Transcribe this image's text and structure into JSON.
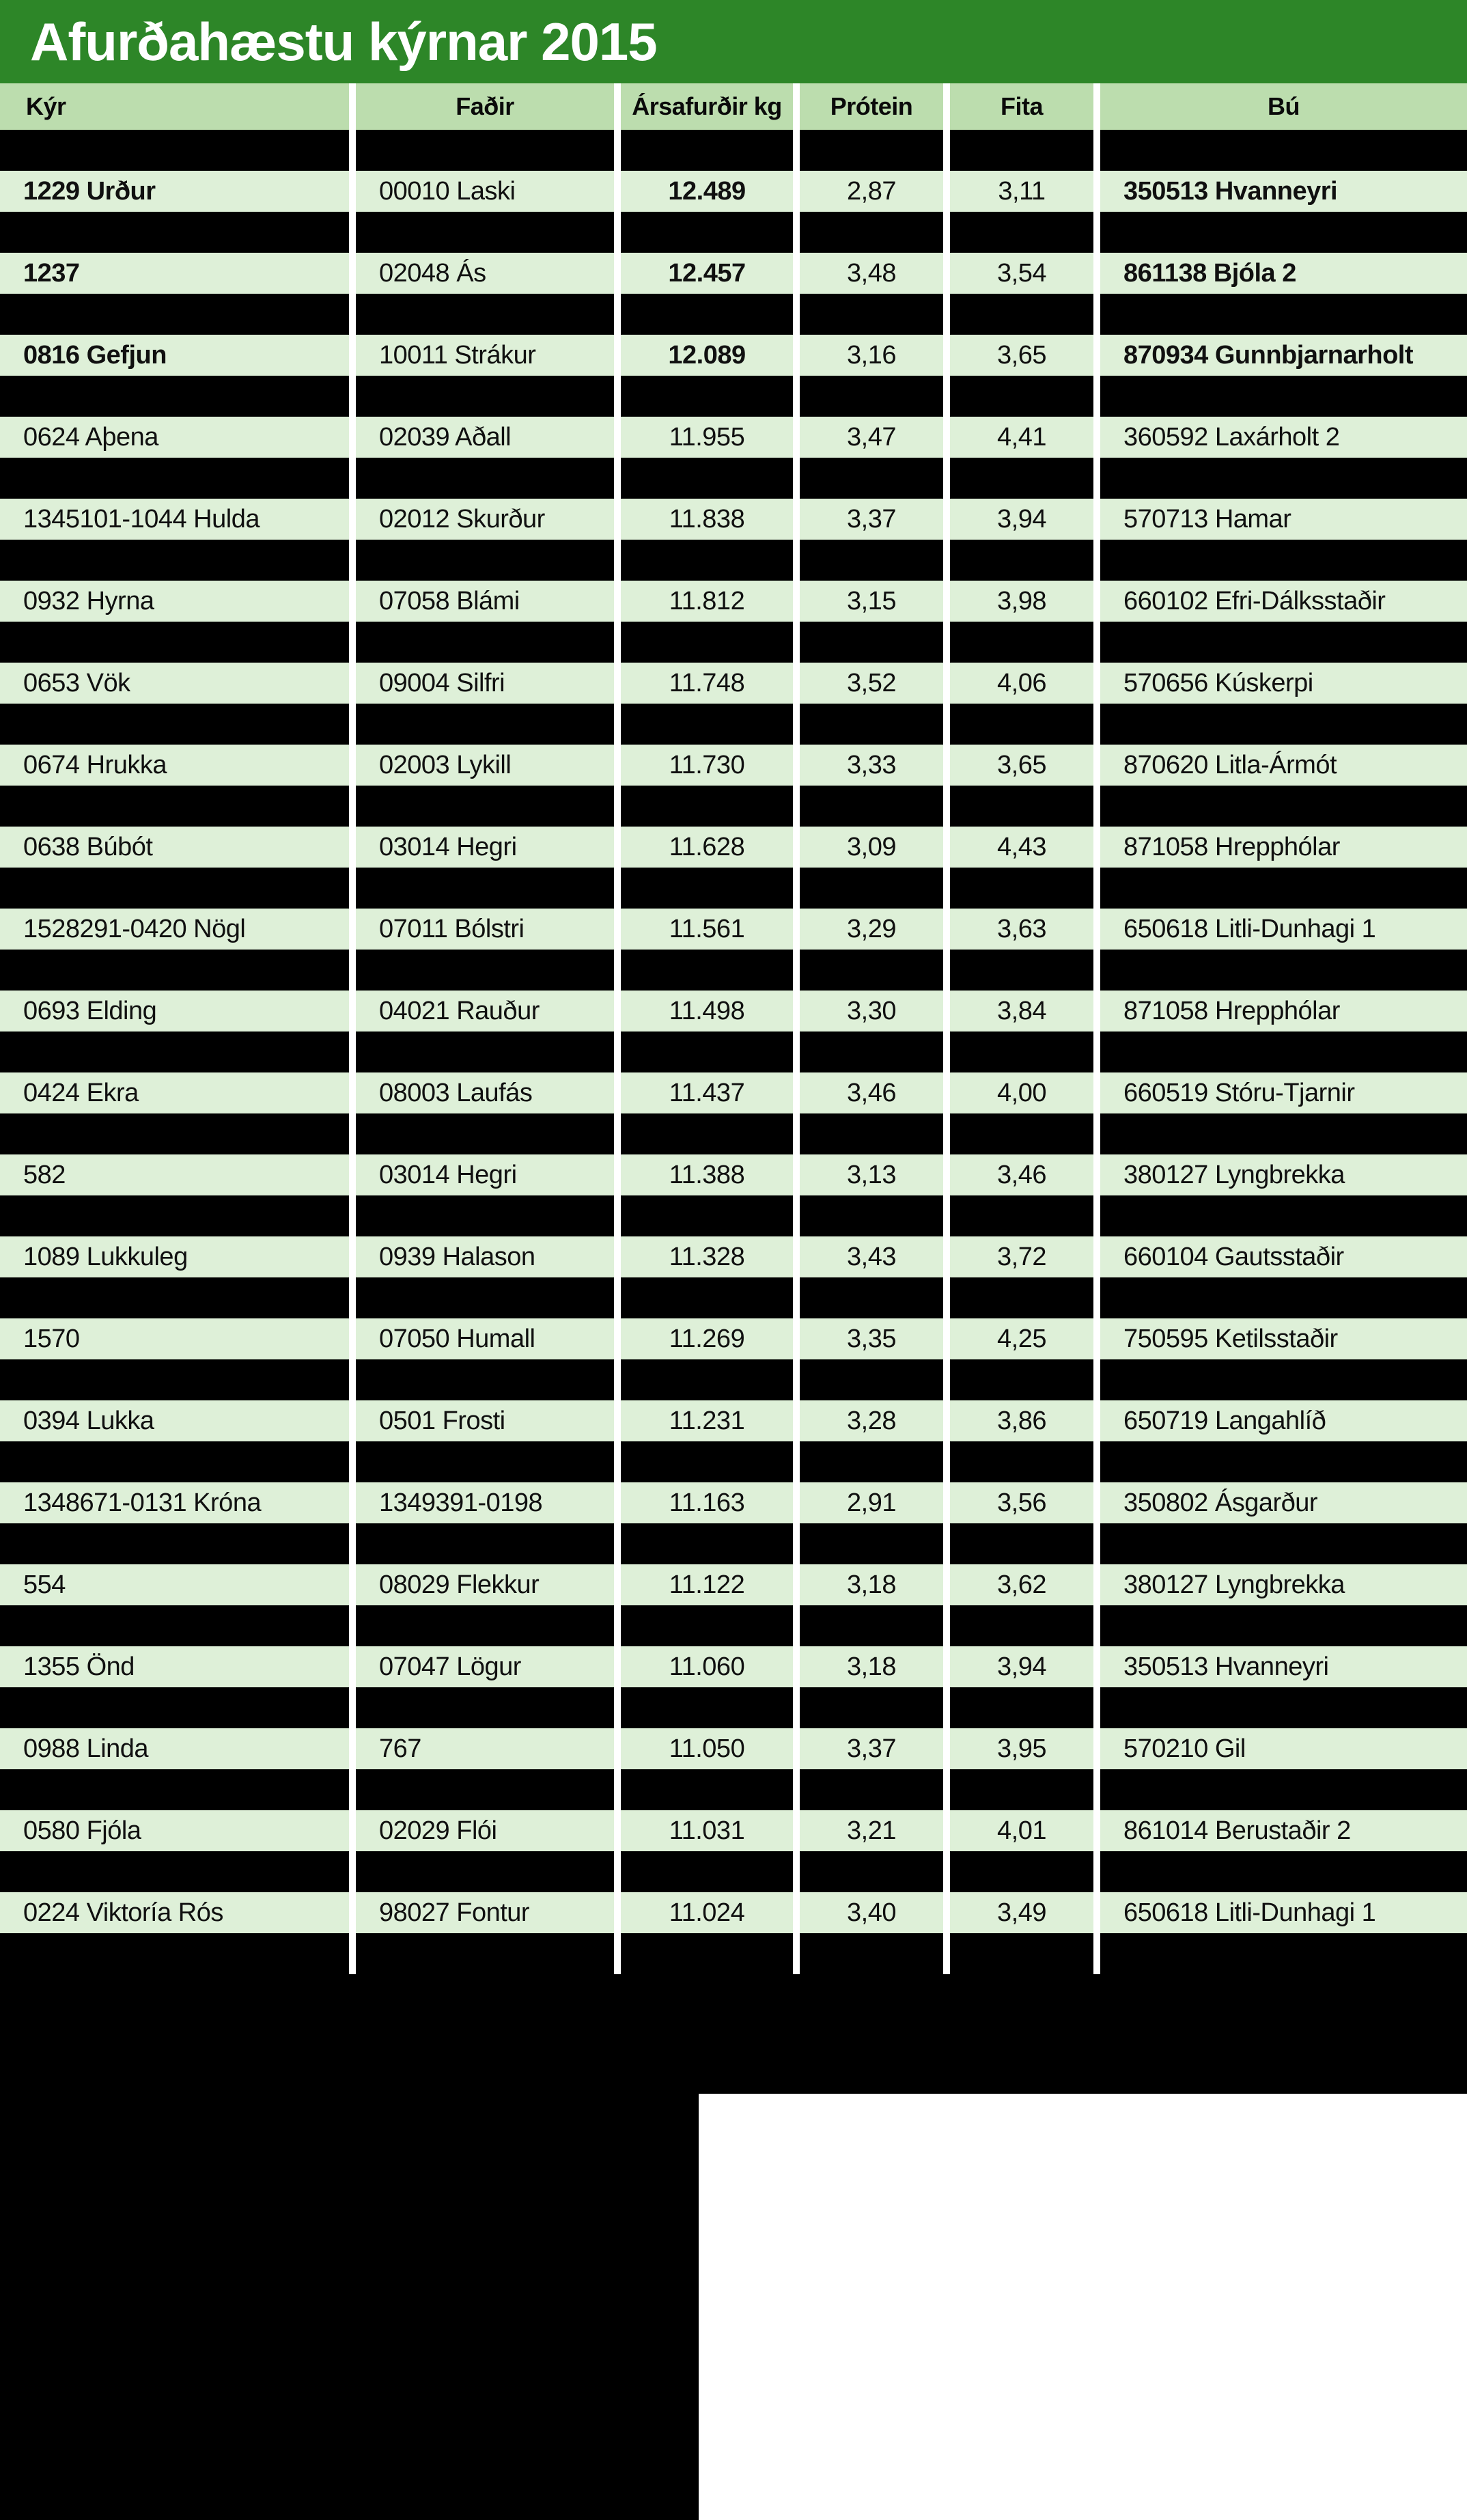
{
  "title": "Afurðahæstu kýrnar 2015",
  "colors": {
    "title_bar_green": "#2d8628",
    "header_row_green": "#bcddae",
    "data_row_green": "#def0d8",
    "redaction_black": "#000000",
    "separator_white": "#ffffff",
    "title_text": "#ffffff",
    "body_text": "#101010"
  },
  "table": {
    "columns": [
      "Kýr",
      "Faðir",
      "Ársafurðir kg",
      "Prótein",
      "Fita",
      "Bú"
    ],
    "rows": [
      {
        "kyr": "1229 Urður",
        "fadir": "00010 Laski",
        "ars": "12.489",
        "protein": "2,87",
        "fita": "3,11",
        "bu": "350513 Hvanneyri",
        "bold": true
      },
      {
        "kyr": "1237",
        "fadir": "02048 Ás",
        "ars": "12.457",
        "protein": "3,48",
        "fita": "3,54",
        "bu": "861138 Bjóla 2",
        "bold": true
      },
      {
        "kyr": "0816 Gefjun",
        "fadir": "10011 Strákur",
        "ars": "12.089",
        "protein": "3,16",
        "fita": "3,65",
        "bu": "870934 Gunnbjarnarholt",
        "bold": true
      },
      {
        "kyr": "0624 Aþena",
        "fadir": "02039 Aðall",
        "ars": "11.955",
        "protein": "3,47",
        "fita": "4,41",
        "bu": "360592 Laxárholt 2",
        "bold": false
      },
      {
        "kyr": "1345101-1044 Hulda",
        "fadir": "02012 Skurður",
        "ars": "11.838",
        "protein": "3,37",
        "fita": "3,94",
        "bu": "570713 Hamar",
        "bold": false
      },
      {
        "kyr": "0932 Hyrna",
        "fadir": "07058 Blámi",
        "ars": "11.812",
        "protein": "3,15",
        "fita": "3,98",
        "bu": "660102 Efri-Dálksstaðir",
        "bold": false
      },
      {
        "kyr": "0653 Vök",
        "fadir": "09004 Silfri",
        "ars": "11.748",
        "protein": "3,52",
        "fita": "4,06",
        "bu": "570656 Kúskerpi",
        "bold": false
      },
      {
        "kyr": "0674 Hrukka",
        "fadir": "02003 Lykill",
        "ars": "11.730",
        "protein": "3,33",
        "fita": "3,65",
        "bu": "870620 Litla-Ármót",
        "bold": false
      },
      {
        "kyr": "0638 Búbót",
        "fadir": "03014 Hegri",
        "ars": "11.628",
        "protein": "3,09",
        "fita": "4,43",
        "bu": "871058 Hrepphólar",
        "bold": false
      },
      {
        "kyr": "1528291-0420 Nögl",
        "fadir": "07011 Bólstri",
        "ars": "11.561",
        "protein": "3,29",
        "fita": "3,63",
        "bu": "650618 Litli-Dunhagi 1",
        "bold": false
      },
      {
        "kyr": "0693 Elding",
        "fadir": "04021 Rauður",
        "ars": "11.498",
        "protein": "3,30",
        "fita": "3,84",
        "bu": "871058 Hrepphólar",
        "bold": false
      },
      {
        "kyr": "0424 Ekra",
        "fadir": "08003 Laufás",
        "ars": "11.437",
        "protein": "3,46",
        "fita": "4,00",
        "bu": "660519 Stóru-Tjarnir",
        "bold": false
      },
      {
        "kyr": "582",
        "fadir": "03014 Hegri",
        "ars": "11.388",
        "protein": "3,13",
        "fita": "3,46",
        "bu": "380127 Lyngbrekka",
        "bold": false
      },
      {
        "kyr": "1089 Lukkuleg",
        "fadir": "0939 Halason",
        "ars": "11.328",
        "protein": "3,43",
        "fita": "3,72",
        "bu": "660104 Gautsstaðir",
        "bold": false
      },
      {
        "kyr": "1570",
        "fadir": "07050 Humall",
        "ars": "11.269",
        "protein": "3,35",
        "fita": "4,25",
        "bu": "750595 Ketilsstaðir",
        "bold": false
      },
      {
        "kyr": "0394 Lukka",
        "fadir": "0501 Frosti",
        "ars": "11.231",
        "protein": "3,28",
        "fita": "3,86",
        "bu": "650719 Langahlíð",
        "bold": false
      },
      {
        "kyr": "1348671-0131 Króna",
        "fadir": "1349391-0198",
        "ars": "11.163",
        "protein": "2,91",
        "fita": "3,56",
        "bu": "350802 Ásgarður",
        "bold": false
      },
      {
        "kyr": "554",
        "fadir": "08029 Flekkur",
        "ars": "11.122",
        "protein": "3,18",
        "fita": "3,62",
        "bu": "380127 Lyngbrekka",
        "bold": false
      },
      {
        "kyr": "1355 Önd",
        "fadir": "07047 Lögur",
        "ars": "11.060",
        "protein": "3,18",
        "fita": "3,94",
        "bu": "350513 Hvanneyri",
        "bold": false
      },
      {
        "kyr": "0988 Linda",
        "fadir": "767",
        "ars": "11.050",
        "protein": "3,37",
        "fita": "3,95",
        "bu": "570210 Gil",
        "bold": false
      },
      {
        "kyr": "0580 Fjóla",
        "fadir": "02029 Flói",
        "ars": "11.031",
        "protein": "3,21",
        "fita": "4,01",
        "bu": "861014 Berustaðir 2",
        "bold": false
      },
      {
        "kyr": "0224 Viktoría Rós",
        "fadir": "98027 Fontur",
        "ars": "11.024",
        "protein": "3,40",
        "fita": "3,49",
        "bu": "650618 Litli-Dunhagi 1",
        "bold": false
      }
    ]
  }
}
